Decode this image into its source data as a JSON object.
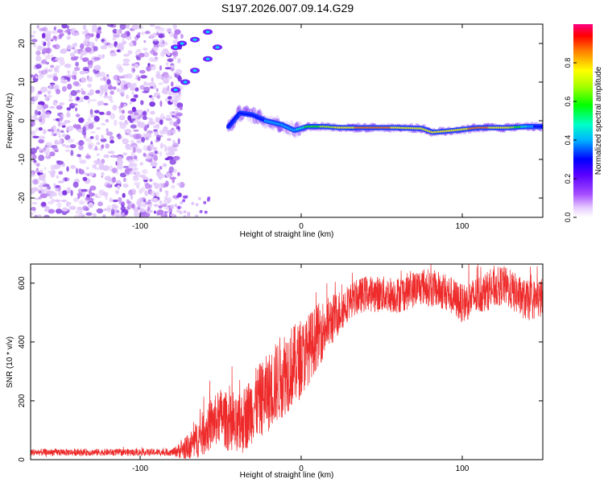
{
  "title": "S197.2026.007.09.14.G29",
  "chart_data": [
    {
      "type": "heatmap",
      "name": "spectrogram",
      "xlabel": "Height of straight line (km)",
      "ylabel": "Frequency (Hz)",
      "xlim": [
        -168,
        150
      ],
      "ylim": [
        -25,
        25
      ],
      "xticks": [
        -100,
        0,
        100
      ],
      "yticks": [
        -20,
        -10,
        0,
        10,
        20
      ],
      "noise_region_x": [
        -168,
        -80
      ],
      "coherent_branch": [
        {
          "x": -78,
          "y": 8
        },
        {
          "x": -72,
          "y": 10
        },
        {
          "x": -66,
          "y": 13
        },
        {
          "x": -58,
          "y": 16
        },
        {
          "x": -52,
          "y": 19
        },
        {
          "x": -58,
          "y": 23
        },
        {
          "x": -66,
          "y": 21
        },
        {
          "x": -74,
          "y": 20
        },
        {
          "x": -78,
          "y": 19
        }
      ],
      "signal_track": [
        {
          "x": -45,
          "y": -1.5,
          "v": 0.3
        },
        {
          "x": -38,
          "y": 2,
          "v": 0.35
        },
        {
          "x": -30,
          "y": 1.5,
          "v": 0.35
        },
        {
          "x": -22,
          "y": 0,
          "v": 0.4
        },
        {
          "x": -12,
          "y": -1,
          "v": 0.4
        },
        {
          "x": -4,
          "y": -2.5,
          "v": 0.45
        },
        {
          "x": 4,
          "y": -1.5,
          "v": 0.6
        },
        {
          "x": 14,
          "y": -1.5,
          "v": 0.7
        },
        {
          "x": 25,
          "y": -1.8,
          "v": 0.8
        },
        {
          "x": 40,
          "y": -1.8,
          "v": 0.9
        },
        {
          "x": 60,
          "y": -1.8,
          "v": 0.85
        },
        {
          "x": 75,
          "y": -2,
          "v": 0.8
        },
        {
          "x": 82,
          "y": -3,
          "v": 0.85
        },
        {
          "x": 95,
          "y": -2.5,
          "v": 0.8
        },
        {
          "x": 110,
          "y": -1.8,
          "v": 0.9
        },
        {
          "x": 128,
          "y": -1.8,
          "v": 0.8
        },
        {
          "x": 140,
          "y": -1.5,
          "v": 0.5
        },
        {
          "x": 150,
          "y": -1.5,
          "v": 0.3
        }
      ],
      "colorbar": {
        "label": "Normalized spectral amplitude",
        "ticks": [
          "0.0",
          "0.2",
          "0.4",
          "0.6",
          "0.8"
        ],
        "range": [
          0,
          1
        ]
      }
    },
    {
      "type": "line",
      "name": "snr",
      "xlabel": "Height of straight line (km)",
      "ylabel": "SNR (10 * v/v)",
      "xlim": [
        -168,
        150
      ],
      "ylim": [
        0,
        665
      ],
      "xticks": [
        -100,
        0,
        100
      ],
      "yticks": [
        0,
        200,
        400,
        600
      ],
      "color": "#ee2a2a",
      "trend": [
        {
          "x": -168,
          "y": 25
        },
        {
          "x": -80,
          "y": 25
        },
        {
          "x": -70,
          "y": 40
        },
        {
          "x": -60,
          "y": 95
        },
        {
          "x": -50,
          "y": 150
        },
        {
          "x": -40,
          "y": 100
        },
        {
          "x": -30,
          "y": 180
        },
        {
          "x": -20,
          "y": 230
        },
        {
          "x": -10,
          "y": 300
        },
        {
          "x": 0,
          "y": 340
        },
        {
          "x": 10,
          "y": 420
        },
        {
          "x": 20,
          "y": 480
        },
        {
          "x": 30,
          "y": 540
        },
        {
          "x": 40,
          "y": 565
        },
        {
          "x": 60,
          "y": 560
        },
        {
          "x": 75,
          "y": 590
        },
        {
          "x": 90,
          "y": 570
        },
        {
          "x": 100,
          "y": 530
        },
        {
          "x": 110,
          "y": 560
        },
        {
          "x": 125,
          "y": 595
        },
        {
          "x": 140,
          "y": 540
        },
        {
          "x": 150,
          "y": 550
        }
      ],
      "noise_amplitude": [
        {
          "x": -168,
          "y": 12
        },
        {
          "x": -80,
          "y": 12
        },
        {
          "x": -60,
          "y": 80
        },
        {
          "x": -30,
          "y": 120
        },
        {
          "x": -10,
          "y": 150
        },
        {
          "x": 10,
          "y": 110
        },
        {
          "x": 30,
          "y": 60
        },
        {
          "x": 150,
          "y": 70
        }
      ]
    }
  ]
}
